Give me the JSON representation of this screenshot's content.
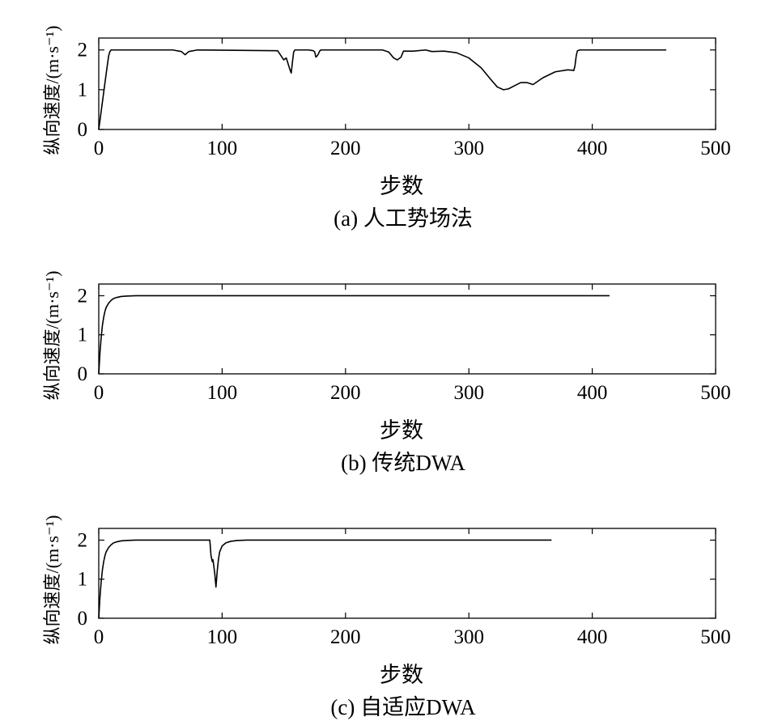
{
  "chart_data": [
    {
      "type": "line",
      "caption": "(a) 人工势场法",
      "xlabel": "步数",
      "ylabel": "纵向速度/(m·s⁻¹)",
      "xlim": [
        0,
        500
      ],
      "ylim": [
        0,
        2.3
      ],
      "xticks": [
        "0",
        "100",
        "200",
        "300",
        "400",
        "500"
      ],
      "yticks": [
        "0",
        "1",
        "2"
      ],
      "grid": false,
      "series": [
        {
          "x": [
            0,
            3,
            6,
            8,
            9,
            10,
            60,
            67,
            70,
            73,
            80,
            145,
            150,
            152,
            153,
            155,
            156,
            157,
            158,
            159,
            162,
            170,
            174,
            175,
            176,
            177,
            178,
            179,
            180,
            185,
            230,
            235,
            239,
            242,
            245,
            247,
            255,
            265,
            270,
            280,
            290,
            300,
            310,
            318,
            323,
            328,
            332,
            337,
            342,
            347,
            352,
            360,
            370,
            380,
            384,
            385,
            386,
            387,
            388,
            390,
            400,
            430,
            460
          ],
          "y": [
            0,
            0.7,
            1.4,
            1.85,
            1.96,
            2.0,
            2.0,
            1.96,
            1.88,
            1.96,
            2.0,
            1.98,
            1.75,
            1.8,
            1.7,
            1.5,
            1.42,
            1.7,
            1.95,
            2.0,
            2.0,
            2.0,
            1.98,
            1.95,
            1.82,
            1.85,
            1.9,
            1.97,
            2.0,
            2.0,
            2.0,
            1.95,
            1.8,
            1.75,
            1.82,
            1.97,
            1.97,
            2.0,
            1.96,
            1.97,
            1.93,
            1.8,
            1.55,
            1.25,
            1.07,
            1.0,
            1.02,
            1.1,
            1.18,
            1.18,
            1.13,
            1.3,
            1.45,
            1.5,
            1.49,
            1.48,
            1.6,
            1.85,
            1.98,
            2.0,
            2.0,
            2.0,
            2.0
          ]
        }
      ]
    },
    {
      "type": "line",
      "caption": "(b) 传统DWA",
      "xlabel": "步数",
      "ylabel": "纵向速度/(m·s⁻¹)",
      "xlim": [
        0,
        500
      ],
      "ylim": [
        0,
        2.3
      ],
      "xticks": [
        "0",
        "100",
        "200",
        "300",
        "400",
        "500"
      ],
      "yticks": [
        "0",
        "1",
        "2"
      ],
      "grid": false,
      "series": [
        {
          "x": [
            0,
            1,
            2,
            3,
            4,
            5,
            6,
            8,
            10,
            12,
            15,
            18,
            22,
            30,
            50,
            100,
            200,
            300,
            400,
            414
          ],
          "y": [
            0,
            0.55,
            0.95,
            1.25,
            1.45,
            1.6,
            1.7,
            1.81,
            1.88,
            1.93,
            1.96,
            1.98,
            1.99,
            2.0,
            2.0,
            2.0,
            2.0,
            2.0,
            2.0,
            2.0
          ]
        }
      ]
    },
    {
      "type": "line",
      "caption": "(c) 自适应DWA",
      "xlabel": "步数",
      "ylabel": "纵向速度/(m·s⁻¹)",
      "xlim": [
        0,
        500
      ],
      "ylim": [
        0,
        2.3
      ],
      "xticks": [
        "0",
        "100",
        "200",
        "300",
        "400",
        "500"
      ],
      "yticks": [
        "0",
        "1",
        "2"
      ],
      "grid": false,
      "series": [
        {
          "x": [
            0,
            1,
            2,
            3,
            4,
            5,
            6,
            8,
            10,
            12,
            15,
            18,
            22,
            30,
            90,
            91,
            92,
            92.5,
            93,
            94,
            95,
            96,
            97,
            98,
            100,
            103,
            107,
            112,
            120,
            150,
            200,
            300,
            367
          ],
          "y": [
            0,
            0.55,
            0.95,
            1.25,
            1.45,
            1.6,
            1.7,
            1.81,
            1.88,
            1.93,
            1.96,
            1.98,
            1.99,
            2.0,
            2.0,
            1.6,
            1.45,
            1.5,
            1.4,
            1.15,
            0.8,
            1.2,
            1.5,
            1.7,
            1.85,
            1.93,
            1.97,
            1.99,
            2.0,
            2.0,
            2.0,
            2.0,
            2.0
          ]
        }
      ]
    }
  ]
}
